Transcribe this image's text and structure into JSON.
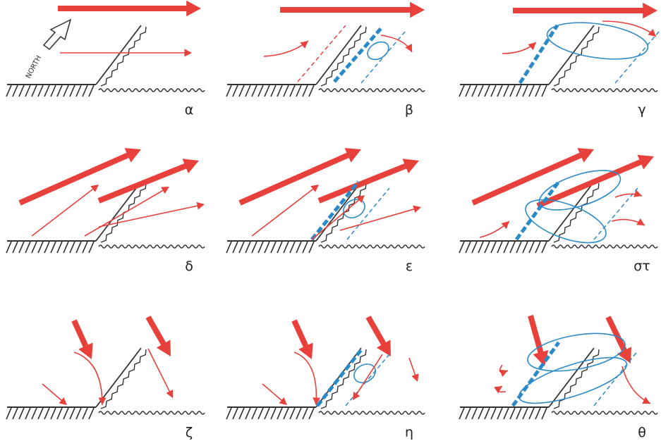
{
  "panels": [
    {
      "label": "α"
    },
    {
      "label": "β"
    },
    {
      "label": "γ"
    },
    {
      "label": "δ"
    },
    {
      "label": "ε"
    },
    {
      "label": "στ"
    },
    {
      "label": "ζ"
    },
    {
      "label": "η"
    },
    {
      "label": "θ"
    }
  ],
  "compass": {
    "label": "NORTH"
  }
}
